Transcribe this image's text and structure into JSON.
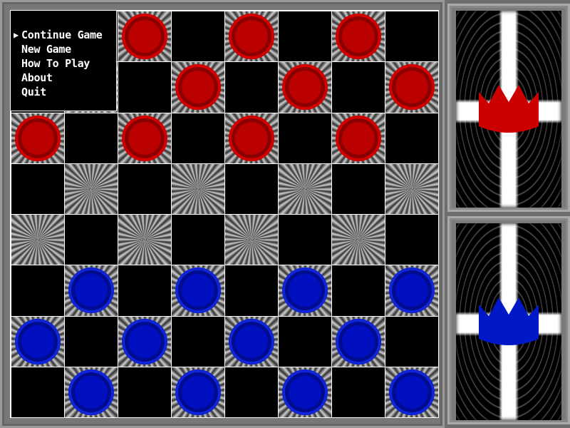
{
  "menu": {
    "items": [
      {
        "label": "Continue Game",
        "selected": true
      },
      {
        "label": "New Game"
      },
      {
        "label": "How To Play"
      },
      {
        "label": "About"
      },
      {
        "label": "Quit"
      }
    ]
  },
  "board": {
    "rows": [
      "..r.r.r.",
      "...r.r.r",
      "r.r.r.r.",
      "........",
      "........",
      ".b.b.b.b",
      "b.b.b.b.",
      ".b.b.b.b"
    ]
  },
  "panels": [
    {
      "name": "red-player",
      "color": "#cc0000"
    },
    {
      "name": "blue-player",
      "color": "#0018c8"
    }
  ]
}
